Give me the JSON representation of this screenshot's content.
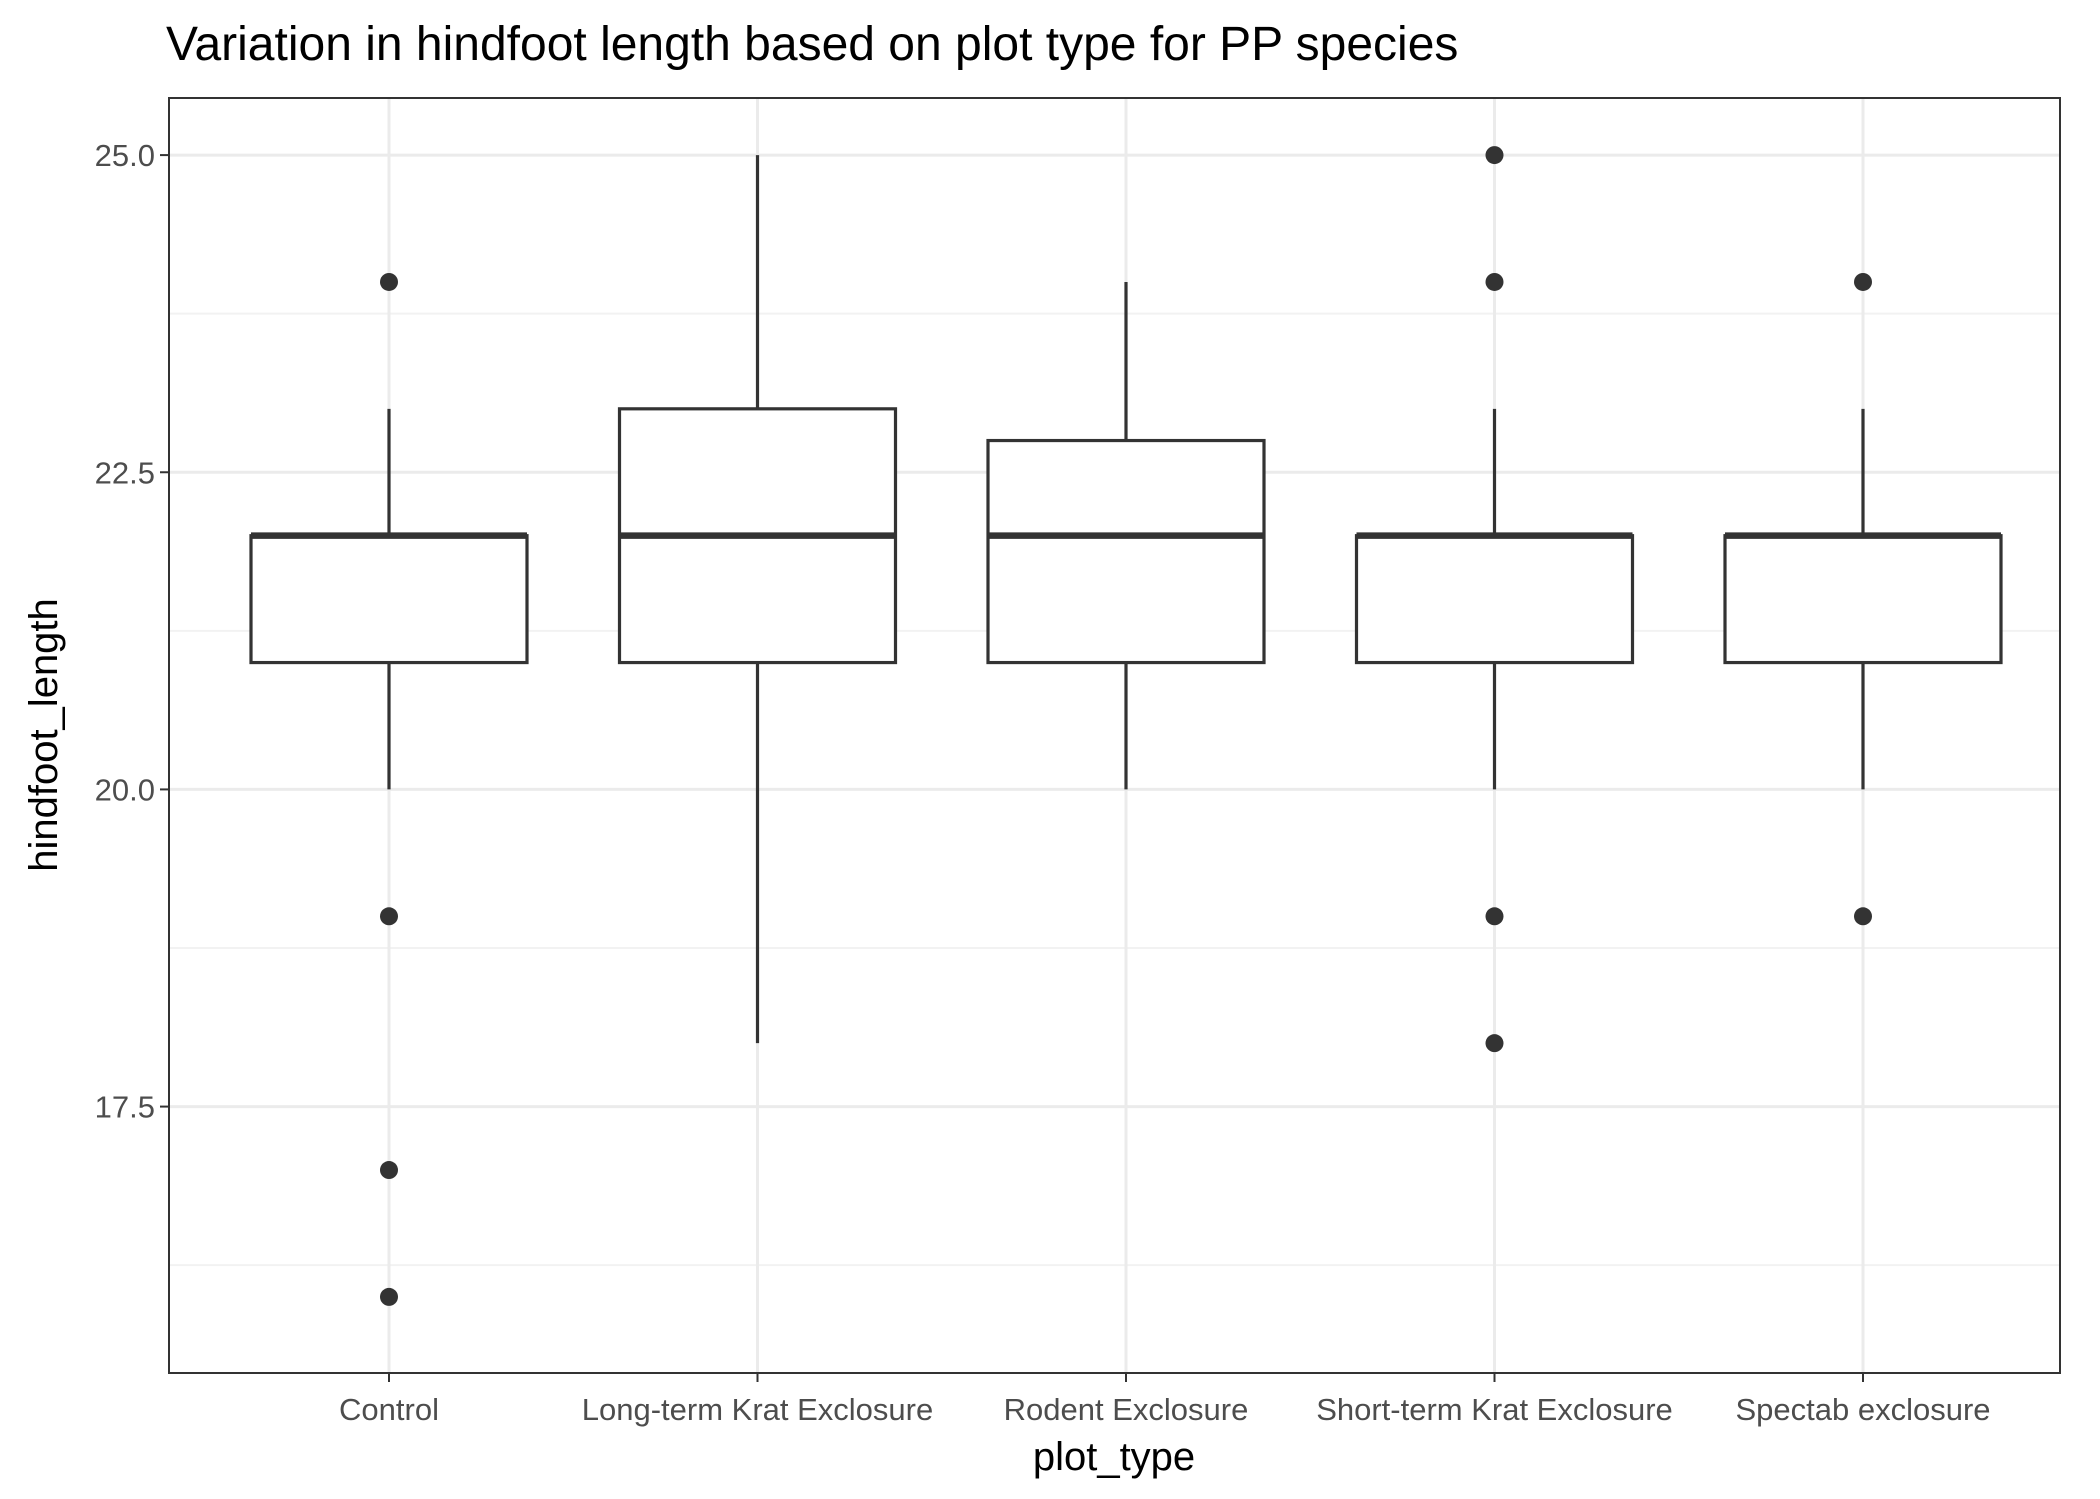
{
  "chart_data": {
    "type": "boxplot",
    "title": "Variation in hindfoot length based on plot type for PP species",
    "xlabel": "plot_type",
    "ylabel": "hindfoot_length",
    "ylim": [
      15.4,
      25.45
    ],
    "yticks": [
      "17.5",
      "20.0",
      "22.5",
      "25.0"
    ],
    "y_minor_ticks": [
      16.25,
      18.75,
      21.25,
      23.75
    ],
    "grid": true,
    "theme": "bw",
    "colors": {
      "box_stroke": "#333333",
      "point": "#333333",
      "grid_major": "#ebebeb",
      "grid_minor": "#f2f2f2",
      "panel_border": "#333333",
      "tick_text": "#4d4d4d"
    },
    "categories": [
      "Control",
      "Long-term Krat Exclosure",
      "Rodent Exclosure",
      "Short-term Krat Exclosure",
      "Spectab exclosure"
    ],
    "boxes": [
      {
        "category": "Control",
        "whisker_low": 20,
        "q1": 21,
        "median": 22,
        "q3": 22,
        "whisker_high": 23,
        "outliers": [
          24,
          19,
          17,
          16
        ]
      },
      {
        "category": "Long-term Krat Exclosure",
        "whisker_low": 18,
        "q1": 21,
        "median": 22,
        "q3": 23,
        "whisker_high": 25,
        "outliers": []
      },
      {
        "category": "Rodent Exclosure",
        "whisker_low": 20,
        "q1": 21,
        "median": 22,
        "q3": 22.75,
        "whisker_high": 24,
        "outliers": []
      },
      {
        "category": "Short-term Krat Exclosure",
        "whisker_low": 20,
        "q1": 21,
        "median": 22,
        "q3": 22,
        "whisker_high": 23,
        "outliers": [
          25,
          24,
          19,
          18
        ]
      },
      {
        "category": "Spectab exclosure",
        "whisker_low": 20,
        "q1": 21,
        "median": 22,
        "q3": 22,
        "whisker_high": 23,
        "outliers": [
          24,
          19
        ]
      }
    ]
  }
}
